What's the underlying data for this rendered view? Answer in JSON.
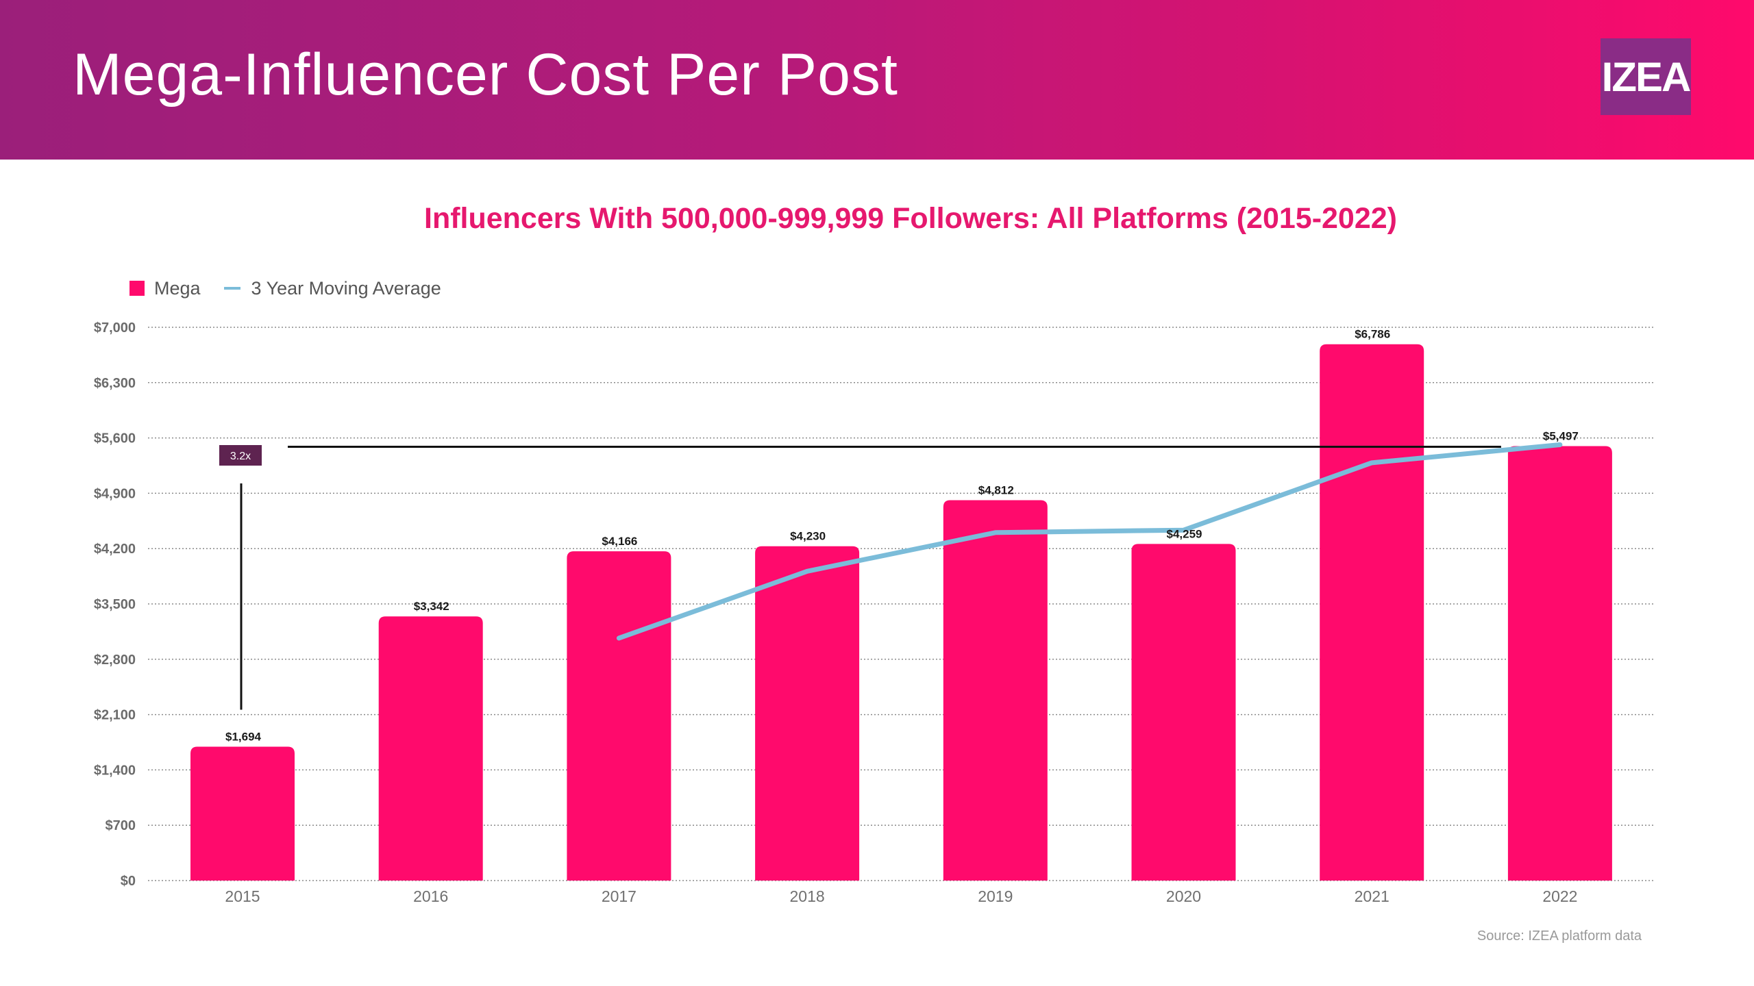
{
  "header": {
    "title": "Mega-Influencer Cost Per Post",
    "logo_text": "IZEA",
    "gradient_start": "#9b1f7a",
    "gradient_end": "#ff0a6c"
  },
  "chart_data": {
    "type": "bar",
    "title": "Influencers With 500,000-999,999 Followers: All Platforms (2015-2022)",
    "categories": [
      "2015",
      "2016",
      "2017",
      "2018",
      "2019",
      "2020",
      "2021",
      "2022"
    ],
    "series": [
      {
        "name": "Mega",
        "type": "bar",
        "color": "#ff0a6c",
        "values": [
          1694,
          3342,
          4166,
          4230,
          4812,
          4259,
          6786,
          5497
        ],
        "labels": [
          "$1,694",
          "$3,342",
          "$4,166",
          "$4,230",
          "$4,812",
          "$4,259",
          "$6,786",
          "$5,497"
        ]
      },
      {
        "name": "3 Year Moving Average",
        "type": "line",
        "color": "#7bbcd9",
        "values": [
          null,
          null,
          3067,
          3913,
          4403,
          4434,
          5286,
          5514
        ]
      }
    ],
    "y_ticks": [
      "$0",
      "$700",
      "$1,400",
      "$2,100",
      "$2,800",
      "$3,500",
      "$4,200",
      "$4,900",
      "$5,600",
      "$6,300",
      "$7,000"
    ],
    "ylim": [
      0,
      7000
    ],
    "grid": true,
    "legend_position": "top-left",
    "annotation": {
      "text": "3.2x",
      "from_value": 1694,
      "to_value": 5497,
      "color": "#5e2350"
    }
  },
  "source": "Source: IZEA platform data"
}
